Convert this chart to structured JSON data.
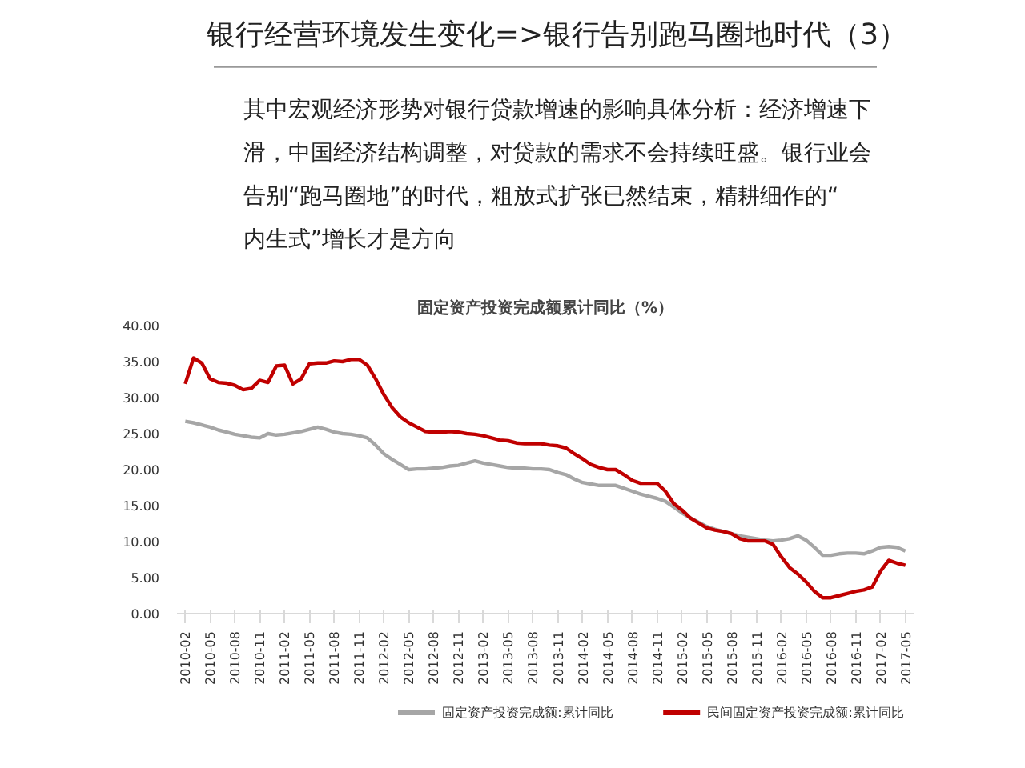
{
  "chart_data": {
    "type": "line",
    "title": "银行经营环境发生变化=>银行告别跑马圈地时代（3）",
    "subtitle": "固定资产投资完成额累计同比（%）",
    "annotations": [
      "其中宏观经济形势对银行贷款增速的影响具体分析：经济增速下滑，中国经济结构调整，对贷款的需求不会持续旺盛。银行业会告别“跑马圈地”的时代，粗放式扩张已然结束，精耕细作的“内生式”增长才是方向"
    ],
    "categories": [
      "2010-02",
      null,
      null,
      "2010-05",
      null,
      null,
      "2010-08",
      null,
      null,
      "2010-11",
      null,
      null,
      "2011-02",
      null,
      null,
      "2011-05",
      null,
      null,
      "2011-08",
      null,
      null,
      "2011-11",
      null,
      null,
      "2012-02",
      null,
      null,
      "2012-05",
      null,
      null,
      "2012-08",
      null,
      null,
      "2012-11",
      null,
      null,
      "2013-02",
      null,
      null,
      "2013-05",
      null,
      null,
      "2013-08",
      null,
      null,
      "2013-11",
      null,
      null,
      "2014-02",
      null,
      null,
      "2014-05",
      null,
      null,
      "2014-08",
      null,
      null,
      "2014-11",
      null,
      null,
      "2015-02",
      null,
      null,
      "2015-05",
      null,
      null,
      "2015-08",
      null,
      null,
      "2015-11",
      null,
      null,
      "2016-02",
      null,
      null,
      "2016-05",
      null,
      null,
      "2016-08",
      null,
      null,
      "2016-11",
      null,
      null,
      "2017-02",
      null,
      null,
      "2017-05"
    ],
    "series": [
      {
        "name": "固定资产投资完成额:累计同比",
        "color": "#a6a6a6",
        "values": [
          26.7,
          26.5,
          26.2,
          25.9,
          25.5,
          25.2,
          24.9,
          24.7,
          24.5,
          24.4,
          25.0,
          24.8,
          24.9,
          25.1,
          25.3,
          25.6,
          25.9,
          25.6,
          25.2,
          25.0,
          24.9,
          24.7,
          24.4,
          23.4,
          22.2,
          21.4,
          20.7,
          20.0,
          20.1,
          20.1,
          20.2,
          20.3,
          20.5,
          20.6,
          20.9,
          21.2,
          20.9,
          20.7,
          20.5,
          20.3,
          20.2,
          20.2,
          20.1,
          20.1,
          20.0,
          19.6,
          19.3,
          18.7,
          18.2,
          18.0,
          17.8,
          17.8,
          17.8,
          17.4,
          17.0,
          16.6,
          16.3,
          16.0,
          15.6,
          14.8,
          14.0,
          13.3,
          12.7,
          12.1,
          11.7,
          11.4,
          11.1,
          10.8,
          10.6,
          10.4,
          10.2,
          10.1,
          10.2,
          10.4,
          10.8,
          10.2,
          9.2,
          8.1,
          8.1,
          8.3,
          8.4,
          8.4,
          8.3,
          8.7,
          9.2,
          9.3,
          9.2,
          8.7
        ]
      },
      {
        "name": "民间固定资产投资完成额:累计同比",
        "color": "#c00000",
        "values": [
          31.9,
          35.5,
          34.8,
          32.6,
          32.1,
          32.0,
          31.7,
          31.1,
          31.3,
          32.4,
          32.1,
          34.4,
          34.5,
          31.9,
          32.6,
          34.7,
          34.8,
          34.8,
          35.1,
          35.0,
          35.3,
          35.3,
          34.5,
          32.6,
          30.4,
          28.6,
          27.3,
          26.5,
          25.9,
          25.3,
          25.2,
          25.2,
          25.3,
          25.2,
          25.0,
          24.9,
          24.7,
          24.4,
          24.1,
          24.0,
          23.7,
          23.6,
          23.6,
          23.6,
          23.4,
          23.3,
          23.0,
          22.2,
          21.5,
          20.7,
          20.3,
          20.0,
          20.0,
          19.3,
          18.5,
          18.1,
          18.1,
          18.1,
          17.0,
          15.3,
          14.4,
          13.3,
          12.6,
          11.9,
          11.6,
          11.4,
          11.1,
          10.4,
          10.1,
          10.1,
          10.1,
          9.6,
          7.9,
          6.4,
          5.5,
          4.4,
          3.1,
          2.2,
          2.2,
          2.5,
          2.8,
          3.1,
          3.3,
          3.7,
          5.9,
          7.4,
          7.0,
          6.7
        ]
      }
    ],
    "ylim": [
      0,
      40
    ],
    "yticks": [
      {
        "value": 0,
        "label": "0.00"
      },
      {
        "value": 5,
        "label": "5.00"
      },
      {
        "value": 10,
        "label": "10.00"
      },
      {
        "value": 15,
        "label": "15.00"
      },
      {
        "value": 20,
        "label": "20.00"
      },
      {
        "value": 25,
        "label": "25.00"
      },
      {
        "value": 30,
        "label": "30.00"
      },
      {
        "value": 35,
        "label": "35.00"
      },
      {
        "value": 40,
        "label": "40.00"
      }
    ],
    "grid": false,
    "legend": "bottom",
    "line_style": "solid"
  }
}
